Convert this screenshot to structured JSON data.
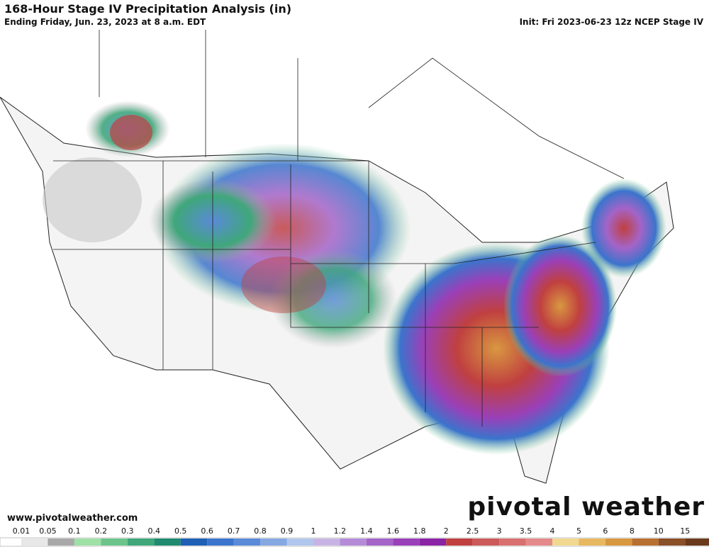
{
  "header": {
    "title": "168-Hour Stage IV Precipitation Analysis (in)",
    "subtitle": "Ending Friday, Jun. 23, 2023 at 8 a.m. EDT",
    "init": "Init: Fri 2023-06-23 12z NCEP Stage IV"
  },
  "footer": {
    "website": "www.pivotalweather.com",
    "logo": "pivotal weather"
  },
  "colorbar": {
    "ticks": [
      0.01,
      0.05,
      0.1,
      0.2,
      0.3,
      0.4,
      0.5,
      0.6,
      0.7,
      0.8,
      0.9,
      1,
      1.2,
      1.4,
      1.6,
      1.8,
      2,
      2.5,
      3,
      3.5,
      4,
      5,
      6,
      8,
      10,
      15
    ],
    "colors": [
      "#e8e8e8",
      "#a8a8a8",
      "#9ee0a6",
      "#6cc48a",
      "#3fa77a",
      "#1f8a6e",
      "#1f5fb4",
      "#3b74cc",
      "#5a8ad8",
      "#86a8e2",
      "#b0c6ec",
      "#c8b4e4",
      "#b58bd8",
      "#a464c8",
      "#9a40b8",
      "#8a24a4",
      "#c04040",
      "#cc5a5a",
      "#d87070",
      "#e48a8a",
      "#f0d890",
      "#e8b860",
      "#d89840",
      "#b87030",
      "#8a5028",
      "#6a3a1c"
    ]
  }
}
